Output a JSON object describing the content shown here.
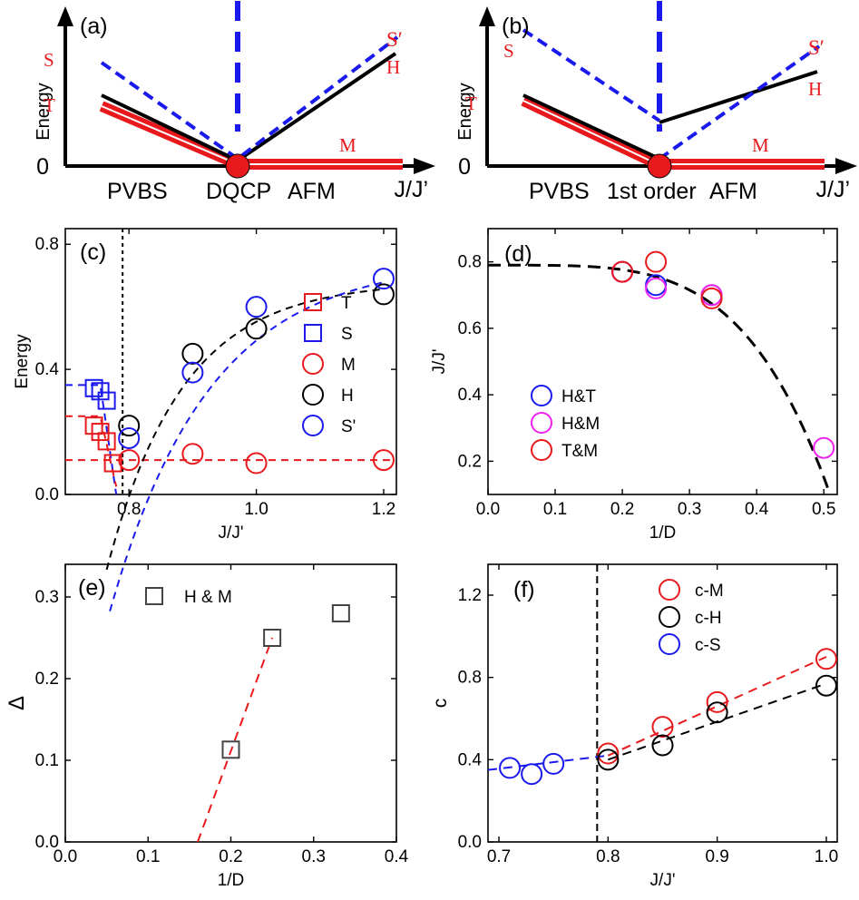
{
  "figure_type": "multi-panel physics figure",
  "colors": {
    "red": "#e8191c",
    "blue": "#1a1aee",
    "black": "#000000",
    "magenta": "#ee22ee",
    "gray": "#444444"
  },
  "chart_data": [
    {
      "panel": "(a)",
      "type": "line",
      "schematic": true,
      "ylabel": "Energy",
      "origin_label": "0",
      "xlabel": "J/J’",
      "region_labels": [
        "PVBS",
        "DQCP",
        "AFM"
      ],
      "line_labels": {
        "S": "S",
        "T": "T",
        "M": "M",
        "H": "H",
        "Sprime": "S′"
      },
      "series": [
        {
          "name": "S",
          "style": "blue-dashed",
          "x": [
            0,
            0.5,
            1
          ],
          "y": [
            0.7,
            0,
            0.9
          ]
        },
        {
          "name": "T",
          "style": "red-triple",
          "x": [
            0,
            0.5,
            1
          ],
          "y": [
            0.45,
            0,
            0
          ]
        },
        {
          "name": "H",
          "style": "black",
          "x": [
            0,
            0.5,
            1
          ],
          "y": [
            0.55,
            0,
            0.75
          ]
        }
      ]
    },
    {
      "panel": "(b)",
      "type": "line",
      "schematic": true,
      "ylabel": "Energy",
      "origin_label": "0",
      "xlabel": "J/J’",
      "region_labels": [
        "PVBS",
        "1st order",
        "AFM"
      ],
      "line_labels": {
        "S": "S",
        "T": "T",
        "M": "M",
        "H": "H",
        "Sprime": "S′"
      },
      "series": [
        {
          "name": "S",
          "style": "blue-dashed",
          "x": [
            0,
            0.5,
            1
          ],
          "y": [
            0.95,
            0.3,
            0.9
          ]
        },
        {
          "name": "T",
          "style": "red-triple",
          "x": [
            0,
            0.5,
            1
          ],
          "y": [
            0.5,
            0,
            0
          ]
        },
        {
          "name": "H",
          "style": "black",
          "x": [
            0,
            0.5,
            1
          ],
          "y": [
            0.55,
            0.3,
            0.7
          ]
        }
      ]
    },
    {
      "panel": "(c)",
      "type": "scatter",
      "xlabel": "J/J'",
      "ylabel": "Energy",
      "xlim": [
        0.7,
        1.22
      ],
      "ylim": [
        0,
        0.85
      ],
      "xticks": [
        "0.8",
        "1.0",
        "1.2"
      ],
      "yticks": [
        "0.0",
        "0.4",
        "0.8"
      ],
      "critical_line_x": 0.79,
      "series": [
        {
          "name": "T",
          "marker": "square",
          "color": "red",
          "x": [
            0.745,
            0.755,
            0.765,
            0.775
          ],
          "y": [
            0.22,
            0.2,
            0.17,
            0.1
          ]
        },
        {
          "name": "S",
          "marker": "square",
          "color": "blue",
          "x": [
            0.745,
            0.755,
            0.765
          ],
          "y": [
            0.34,
            0.33,
            0.3
          ]
        },
        {
          "name": "M",
          "marker": "circle",
          "color": "red",
          "x": [
            0.8,
            0.9,
            1.0,
            1.2
          ],
          "y": [
            0.11,
            0.13,
            0.1,
            0.11
          ]
        },
        {
          "name": "H",
          "marker": "circle",
          "color": "black",
          "x": [
            0.8,
            0.9,
            1.0,
            1.2
          ],
          "y": [
            0.22,
            0.45,
            0.53,
            0.64
          ]
        },
        {
          "name": "S'",
          "marker": "circle",
          "color": "blue",
          "x": [
            0.8,
            0.9,
            1.0,
            1.2
          ],
          "y": [
            0.18,
            0.39,
            0.6,
            0.69
          ]
        }
      ],
      "legend": [
        "T",
        "S",
        "M",
        "H",
        "S'"
      ]
    },
    {
      "panel": "(d)",
      "type": "scatter",
      "xlabel": "1/D",
      "ylabel": "J/J'",
      "xlim": [
        0,
        0.52
      ],
      "ylim": [
        0.1,
        0.9
      ],
      "xticks": [
        "0.0",
        "0.1",
        "0.2",
        "0.3",
        "0.4",
        "0.5"
      ],
      "yticks": [
        "0.2",
        "0.4",
        "0.6",
        "0.8"
      ],
      "series": [
        {
          "name": "H&T",
          "marker": "circle",
          "color": "blue",
          "x": [
            0.2,
            0.25,
            0.333
          ],
          "y": [
            0.77,
            0.73,
            0.7
          ]
        },
        {
          "name": "H&M",
          "marker": "circle",
          "color": "magenta",
          "x": [
            0.2,
            0.25,
            0.333,
            0.5
          ],
          "y": [
            0.77,
            0.72,
            0.7,
            0.24
          ]
        },
        {
          "name": "T&M",
          "marker": "circle",
          "color": "red",
          "x": [
            0.2,
            0.25,
            0.333
          ],
          "y": [
            0.77,
            0.8,
            0.69
          ]
        }
      ],
      "legend": [
        "H&T",
        "H&M",
        "T&M"
      ]
    },
    {
      "panel": "(e)",
      "type": "scatter",
      "xlabel": "1/D",
      "ylabel": "Δ",
      "xlim": [
        0,
        0.4
      ],
      "ylim": [
        0,
        0.34
      ],
      "xticks": [
        "0.0",
        "0.1",
        "0.2",
        "0.3",
        "0.4"
      ],
      "yticks": [
        "0.0",
        "0.1",
        "0.2",
        "0.3"
      ],
      "series": [
        {
          "name": "H & M",
          "marker": "square",
          "color": "gray",
          "x": [
            0.2,
            0.25,
            0.333
          ],
          "y": [
            0.113,
            0.25,
            0.28
          ]
        }
      ],
      "fit": {
        "x": [
          0.16,
          0.25
        ],
        "y": [
          0.0,
          0.25
        ]
      },
      "legend": [
        "H & M"
      ]
    },
    {
      "panel": "(f)",
      "type": "scatter",
      "xlabel": "J/J'",
      "ylabel": "c",
      "xlim": [
        0.69,
        1.01
      ],
      "ylim": [
        0,
        1.35
      ],
      "xticks": [
        "0.7",
        "0.8",
        "0.9",
        "1.0"
      ],
      "yticks": [
        "0.0",
        "0.4",
        "0.8",
        "1.2"
      ],
      "critical_line_x": 0.79,
      "series": [
        {
          "name": "c-M",
          "marker": "circle",
          "color": "red",
          "x": [
            0.8,
            0.85,
            0.9,
            1.0
          ],
          "y": [
            0.43,
            0.56,
            0.68,
            0.89
          ]
        },
        {
          "name": "c-H",
          "marker": "circle",
          "color": "black",
          "x": [
            0.8,
            0.85,
            0.9,
            1.0
          ],
          "y": [
            0.4,
            0.47,
            0.63,
            0.76
          ]
        },
        {
          "name": "c-S",
          "marker": "circle",
          "color": "blue",
          "x": [
            0.71,
            0.73,
            0.75
          ],
          "y": [
            0.36,
            0.33,
            0.38
          ]
        }
      ],
      "legend": [
        "c-M",
        "c-H",
        "c-S"
      ]
    }
  ]
}
